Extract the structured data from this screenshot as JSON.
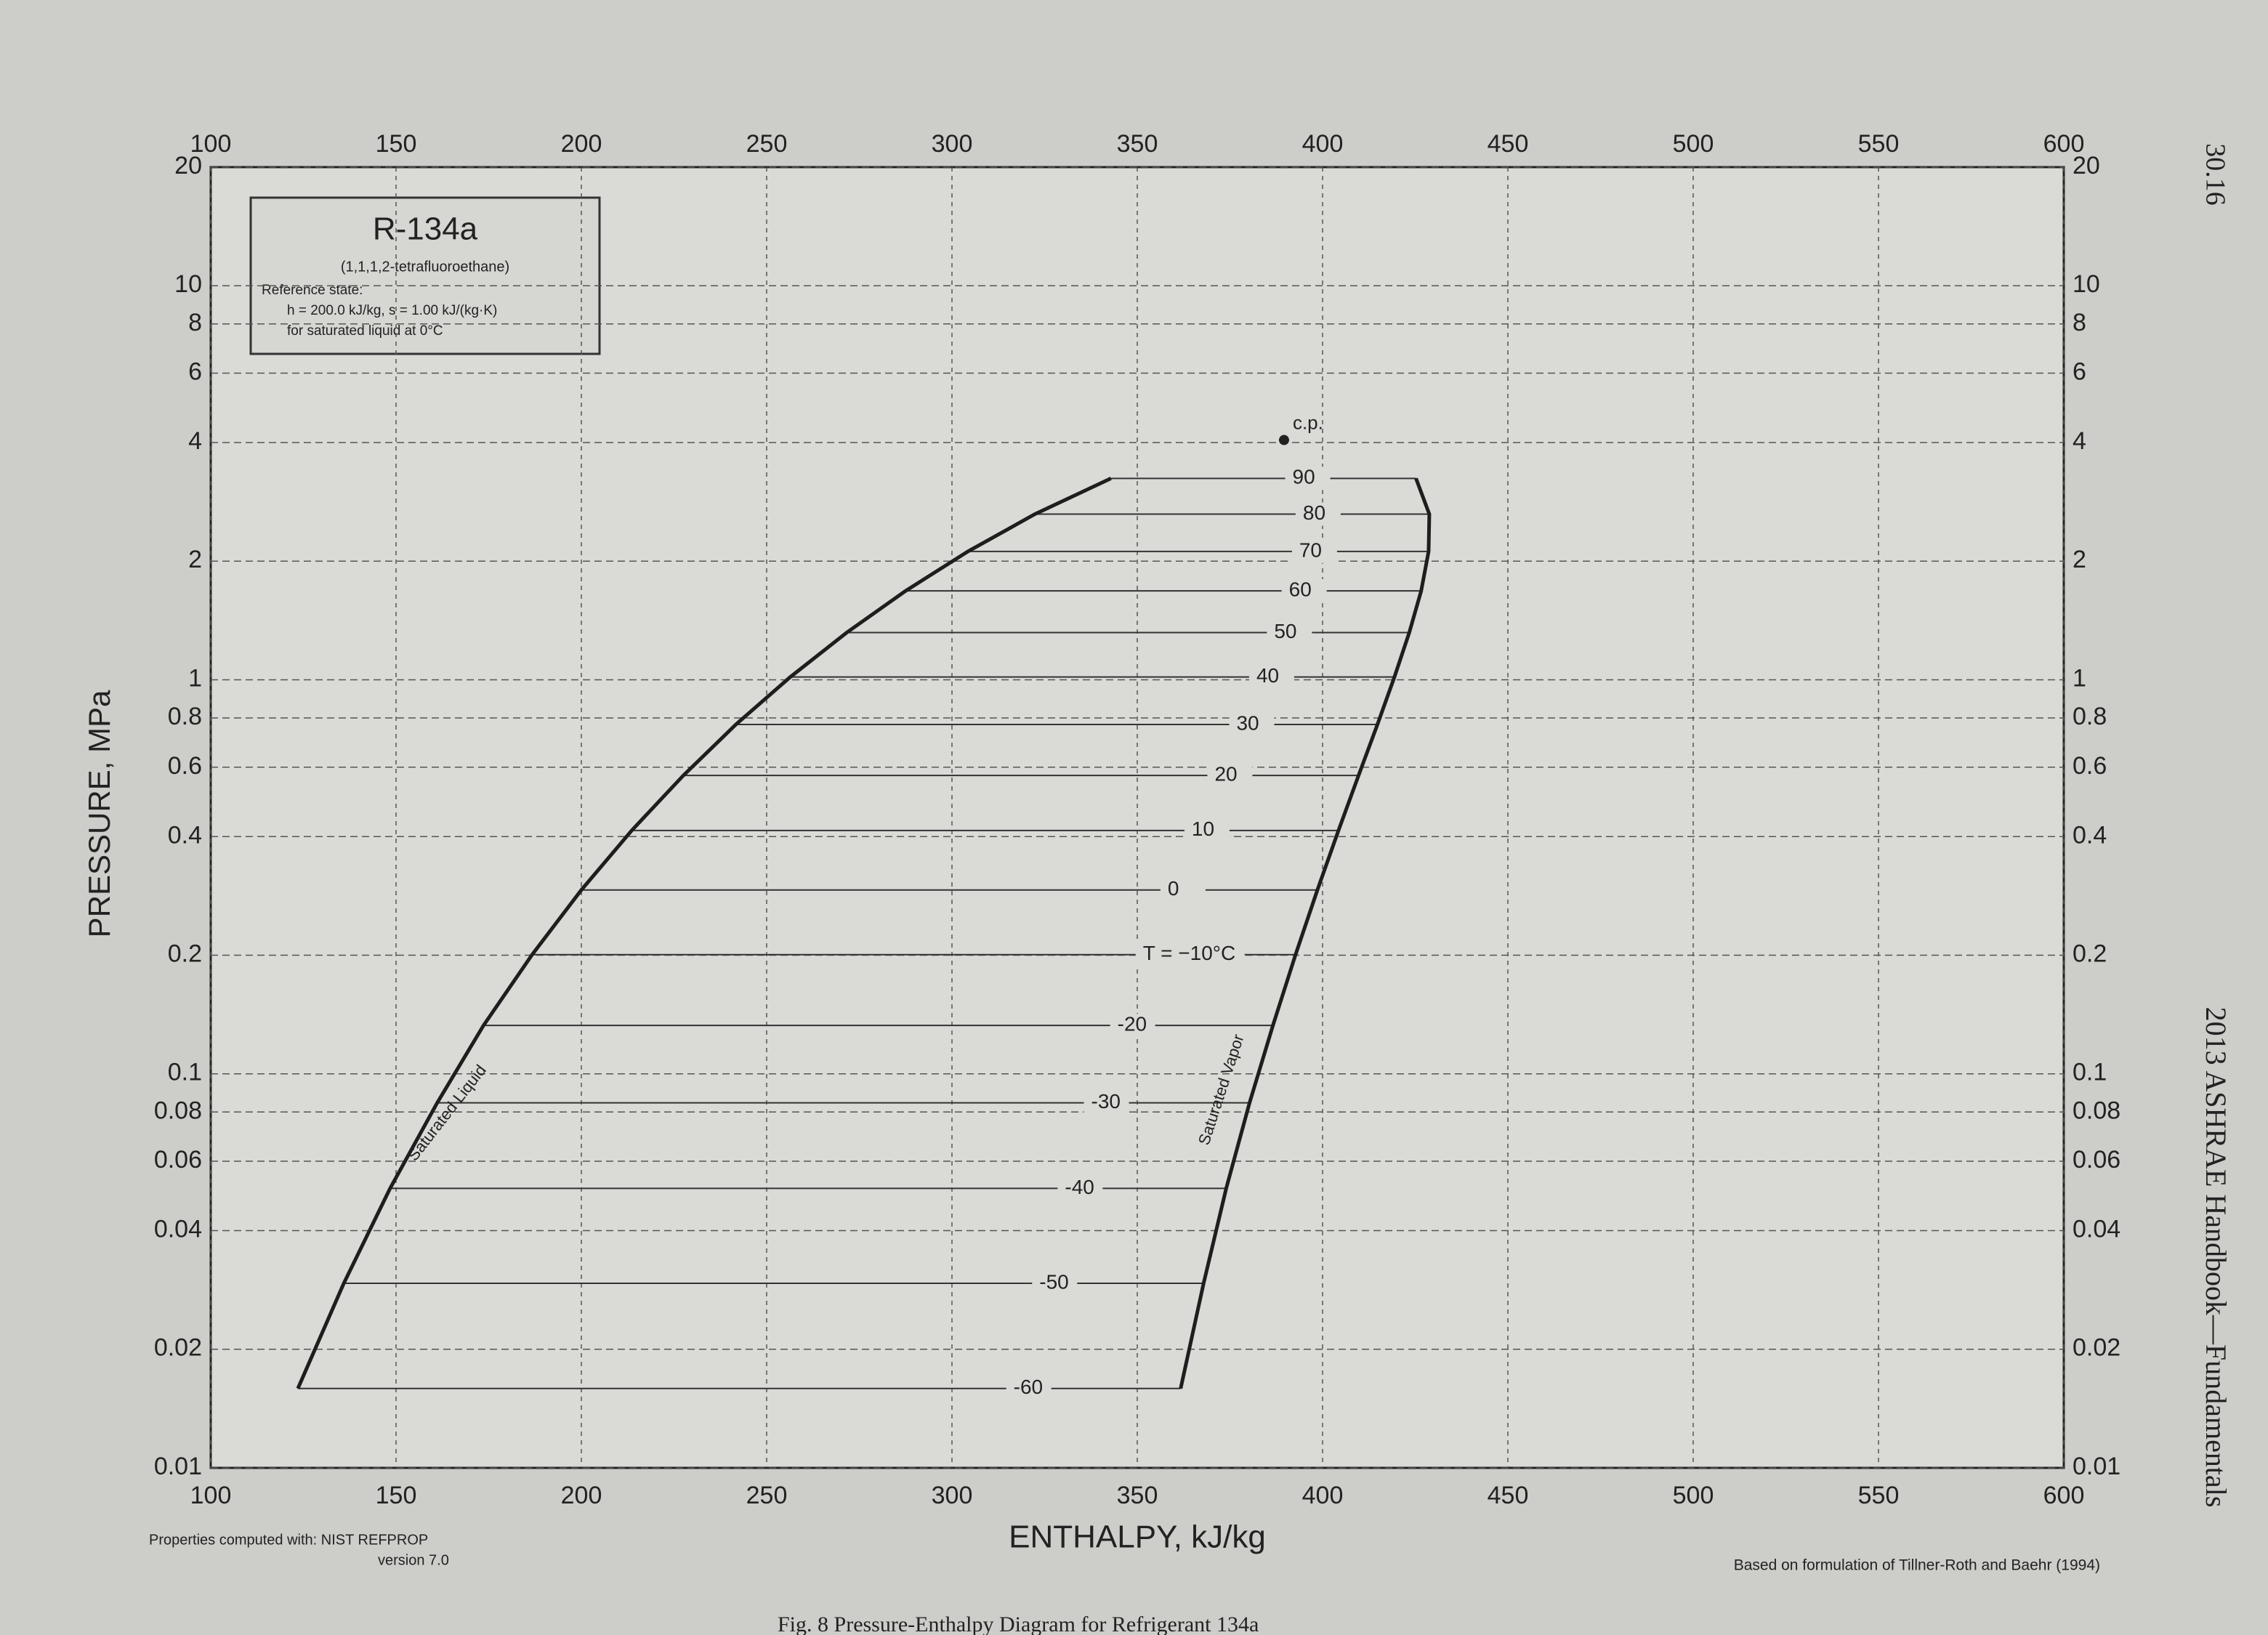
{
  "chart_data": {
    "type": "line",
    "title": "R-134a",
    "subtitle": "(1,1,1,2-tetrafluoroethane)",
    "reference_note": [
      "Reference state:",
      "h = 200.0 kJ/kg,  s = 1.00 kJ/(kg·K)",
      "for saturated liquid at 0°C"
    ],
    "x_label": "ENTHALPY, kJ/kg",
    "y_label": "PRESSURE, MPa",
    "xlim": [
      100,
      600
    ],
    "xticks": [
      100,
      150,
      200,
      250,
      300,
      350,
      400,
      450,
      500,
      550,
      600
    ],
    "ylim": [
      0.01,
      20
    ],
    "yticks": [
      0.01,
      0.02,
      0.04,
      0.06,
      0.08,
      0.1,
      0.2,
      0.4,
      0.6,
      0.8,
      1,
      2,
      4,
      6,
      8,
      10,
      20
    ],
    "log_y": true,
    "grid": true,
    "series": [
      {
        "name": "Saturated Liquid",
        "color": "#1e1e1e",
        "x": [
          123.5,
          135.9,
          148.4,
          161.1,
          173.6,
          186.7,
          200.0,
          213.6,
          227.5,
          241.7,
          256.4,
          271.6,
          287.5,
          304.3,
          322.4,
          342.9
        ],
        "values": [
          0.0159,
          0.0294,
          0.0512,
          0.0844,
          0.1327,
          0.2006,
          0.2928,
          0.4146,
          0.5717,
          0.7702,
          1.0166,
          1.3179,
          1.6818,
          2.1168,
          2.6332,
          3.2445
        ]
      },
      {
        "name": "Saturated Vapor",
        "color": "#1e1e1e",
        "x": [
          361.7,
          367.9,
          374.0,
          380.3,
          386.6,
          392.7,
          398.6,
          404.3,
          409.7,
          414.8,
          419.4,
          423.4,
          426.6,
          428.6,
          428.8,
          425.2
        ],
        "values": [
          0.0159,
          0.0294,
          0.0512,
          0.0844,
          0.1327,
          0.2006,
          0.2928,
          0.4146,
          0.5717,
          0.7702,
          1.0166,
          1.3179,
          1.6818,
          2.1168,
          2.6332,
          3.2445
        ]
      }
    ],
    "isotherms": {
      "values": [
        -60,
        -50,
        -40,
        -30,
        -20,
        -10,
        0,
        10,
        20,
        30,
        40,
        50,
        60,
        70,
        80,
        90
      ],
      "value_labels": [
        "-60",
        "-50",
        "-40",
        "-30",
        "-20",
        "T = −10°C",
        "0",
        "10",
        "20",
        "30",
        "40",
        "50",
        "60",
        "70",
        "80",
        "90"
      ]
    },
    "critical_point": {
      "label": "c.p.",
      "x": 389.6,
      "value": 4.06
    }
  },
  "footer_left": "Properties computed with:  NIST REFPROP",
  "footer_left_version": "version 7.0",
  "footer_right": "Based on formulation of Tillner-Roth and Baehr (1994)",
  "caption": "Fig. 8    Pressure-Enthalpy Diagram for Refrigerant 134a",
  "page_number": "30.16",
  "running_head": "2013 ASHRAE Handbook—Fundamentals"
}
